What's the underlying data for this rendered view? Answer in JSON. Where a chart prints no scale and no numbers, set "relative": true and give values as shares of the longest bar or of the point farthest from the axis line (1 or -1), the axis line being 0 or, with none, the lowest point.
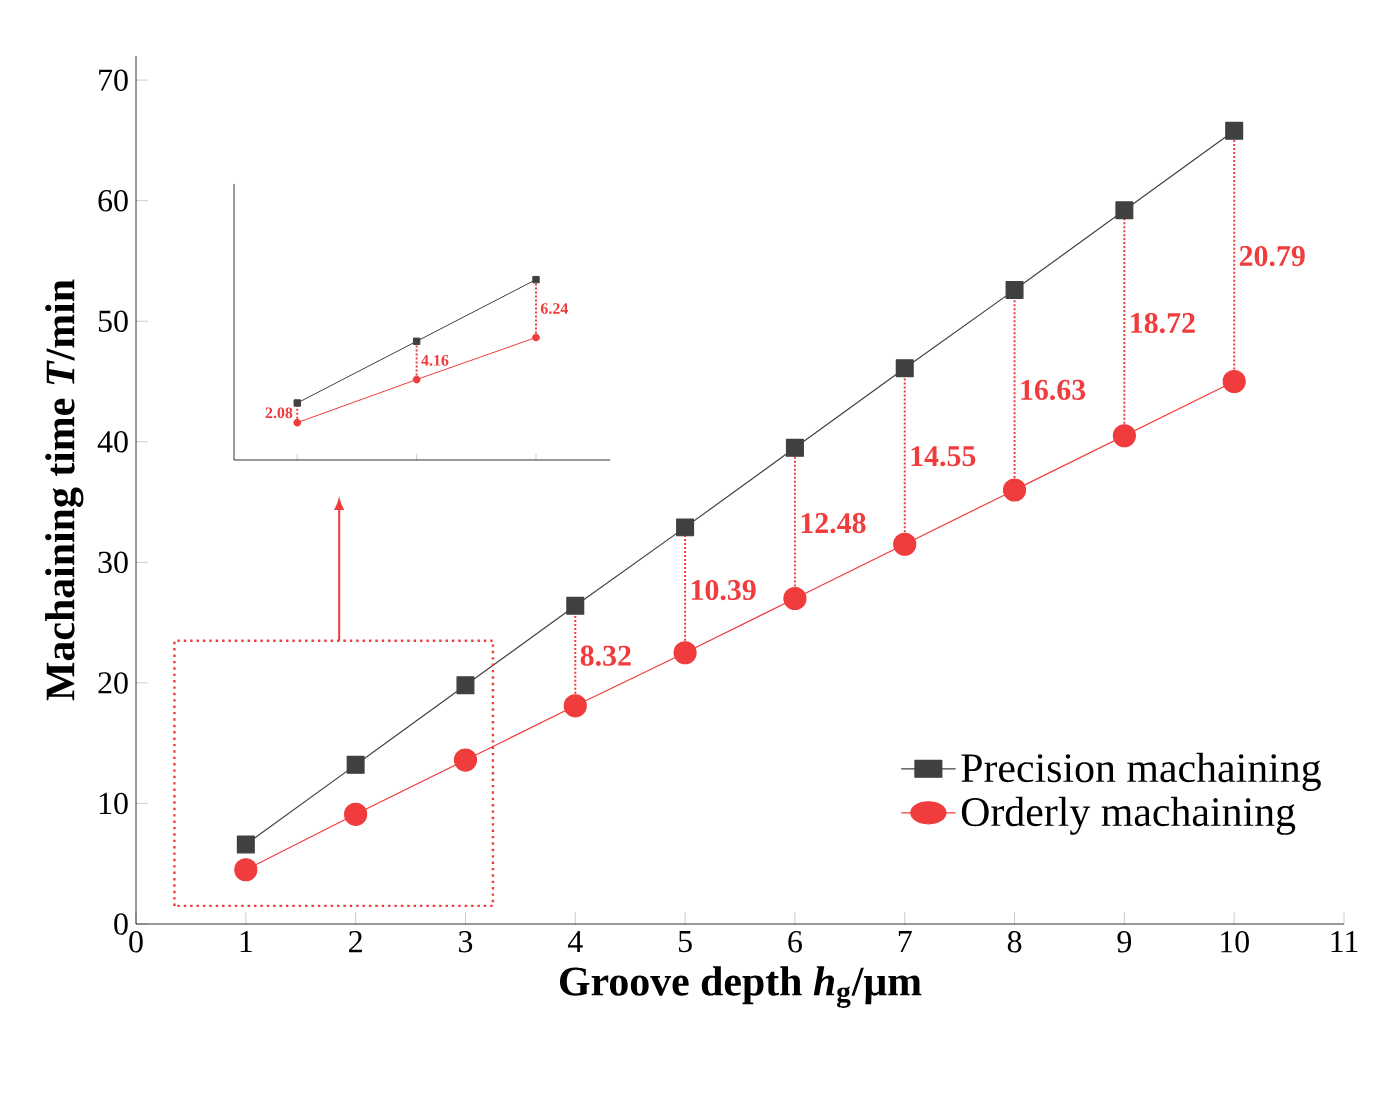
{
  "chart_data": [
    {
      "type": "line",
      "xlabel": "Groove depth *h*$_{g}$/μm",
      "ylabel": "Machaining time *T*/min",
      "x": [
        1,
        2,
        3,
        4,
        5,
        6,
        7,
        8,
        9,
        10
      ],
      "series": [
        {
          "name": "Precision machaining",
          "color": "#404040",
          "marker": "square",
          "values": [
            6.6,
            13.2,
            19.8,
            26.4,
            32.9,
            39.5,
            46.1,
            52.6,
            59.2,
            65.8
          ]
        },
        {
          "name": "Orderly machaining",
          "color": "#f03c3c",
          "marker": "circle",
          "values": [
            4.5,
            9.1,
            13.6,
            18.1,
            22.5,
            27.0,
            31.5,
            36.0,
            40.5,
            45.0
          ]
        }
      ],
      "xlim": [
        0,
        11
      ],
      "ylim": [
        0,
        72
      ],
      "xticks": [
        0,
        1,
        2,
        3,
        4,
        5,
        6,
        7,
        8,
        9,
        10,
        11
      ],
      "yticks": [
        0,
        10,
        20,
        30,
        40,
        50,
        60,
        70
      ],
      "legend": "bottom right",
      "annotations": [
        "8.32",
        "10.39",
        "12.48",
        "14.55",
        "16.63",
        "18.72",
        "20.79"
      ]
    },
    {
      "type": "line",
      "relative": true,
      "categories": [
        null,
        null,
        null
      ],
      "series": [
        {
          "color": "#404040",
          "marker": "square",
          "values": [
            0.316,
            0.658,
            1
          ]
        },
        {
          "color": "#f03c3c",
          "marker": "circle",
          "values": [
            0.207,
            0.446,
            0.679
          ]
        }
      ],
      "annotations": [
        "2.08",
        "4.16",
        "6.24"
      ]
    }
  ]
}
